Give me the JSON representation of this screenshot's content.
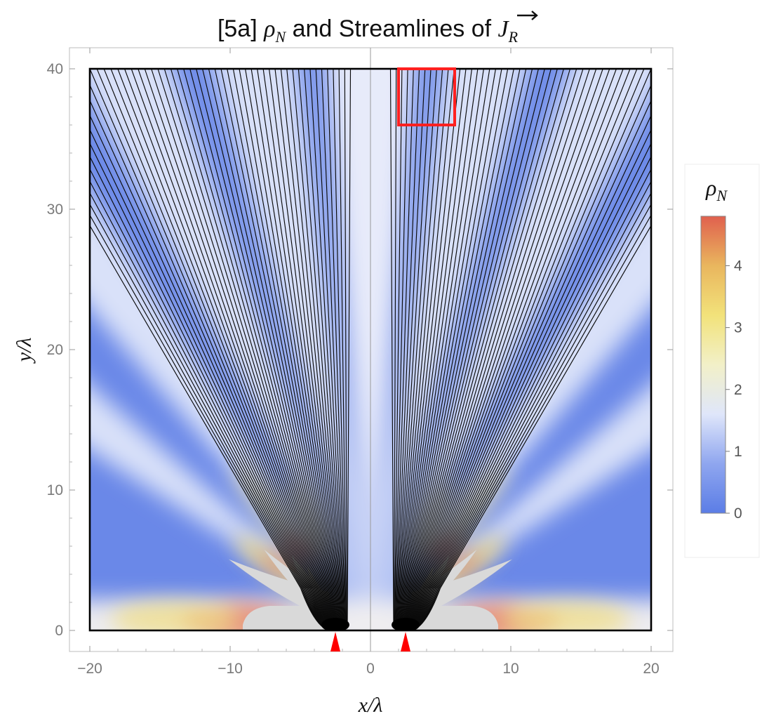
{
  "chart_data": {
    "type": "heatmap",
    "title": "[5a] ρN and Streamlines of J⃗R",
    "title_parts": {
      "prefix": "[5a] ",
      "rho": "ρ",
      "rho_sub": "N",
      "middle": " and Streamlines of ",
      "j": "J",
      "j_sub": "R"
    },
    "xlabel": "x/λ",
    "ylabel": "y/λ",
    "xlim": [
      -20,
      20
    ],
    "ylim": [
      0,
      40
    ],
    "x_ticks": [
      -20,
      -10,
      0,
      10,
      20
    ],
    "x_tick_labels": [
      "−20",
      "−10",
      "0",
      "10",
      "20"
    ],
    "y_ticks": [
      0,
      10,
      20,
      30,
      40
    ],
    "y_tick_labels": [
      "0",
      "10",
      "20",
      "30",
      "40"
    ],
    "colorbar": {
      "label": "ρN",
      "label_parts": {
        "rho": "ρ",
        "sub": "N"
      },
      "range": [
        0,
        4.8
      ],
      "ticks": [
        0,
        1,
        2,
        3,
        4
      ],
      "tick_labels": [
        "0",
        "1",
        "2",
        "3",
        "4"
      ],
      "colors": [
        "#5b7de6",
        "#8fa6ef",
        "#dfe6fa",
        "#f2f0c8",
        "#f2e27a",
        "#e9b65e",
        "#e0604e"
      ]
    },
    "slits_x": [
      -2.5,
      2.5
    ],
    "slit_marker_color": "#ff0000",
    "highlight_box": {
      "x": [
        2,
        6
      ],
      "y": [
        36,
        40
      ],
      "color": "#ff2020"
    },
    "fringe_angles_deg": [
      0,
      11.5,
      23.6,
      36.9,
      53.1
    ],
    "source_excluded_zone_color": "#d9d9d9",
    "streamline_bundle_angles_deg": {
      "left": [
        -33,
        -2
      ],
      "right": [
        2,
        33
      ]
    },
    "streamline_count": 110,
    "grid": false
  }
}
